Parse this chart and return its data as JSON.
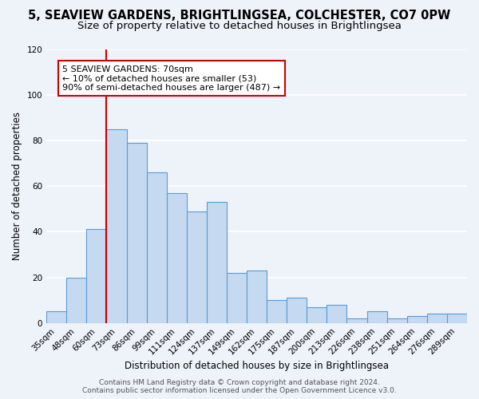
{
  "title": "5, SEAVIEW GARDENS, BRIGHTLINGSEA, COLCHESTER, CO7 0PW",
  "subtitle": "Size of property relative to detached houses in Brightlingsea",
  "xlabel": "Distribution of detached houses by size in Brightlingsea",
  "ylabel": "Number of detached properties",
  "bar_labels": [
    "35sqm",
    "48sqm",
    "60sqm",
    "73sqm",
    "86sqm",
    "99sqm",
    "111sqm",
    "124sqm",
    "137sqm",
    "149sqm",
    "162sqm",
    "175sqm",
    "187sqm",
    "200sqm",
    "213sqm",
    "226sqm",
    "238sqm",
    "251sqm",
    "264sqm",
    "276sqm",
    "289sqm"
  ],
  "bar_values": [
    5,
    20,
    41,
    85,
    79,
    66,
    57,
    49,
    53,
    22,
    23,
    10,
    11,
    7,
    8,
    2,
    5,
    2,
    3,
    4,
    4
  ],
  "bar_color": "#c5d9f0",
  "bar_edge_color": "#5b9bd5",
  "vline_color": "#cc0000",
  "annotation_line1": "5 SEAVIEW GARDENS: 70sqm",
  "annotation_line2": "← 10% of detached houses are smaller (53)",
  "annotation_line3": "90% of semi-detached houses are larger (487) →",
  "annotation_box_color": "#ffffff",
  "annotation_box_edge": "#cc0000",
  "ylim": [
    0,
    120
  ],
  "yticks": [
    0,
    20,
    40,
    60,
    80,
    100,
    120
  ],
  "footer1": "Contains HM Land Registry data © Crown copyright and database right 2024.",
  "footer2": "Contains public sector information licensed under the Open Government Licence v3.0.",
  "background_color": "#eef2f9",
  "grid_color": "#ffffff",
  "title_fontsize": 10.5,
  "subtitle_fontsize": 9.5,
  "axis_label_fontsize": 8.5,
  "tick_fontsize": 7.5,
  "annotation_fontsize": 8,
  "footer_fontsize": 6.5
}
